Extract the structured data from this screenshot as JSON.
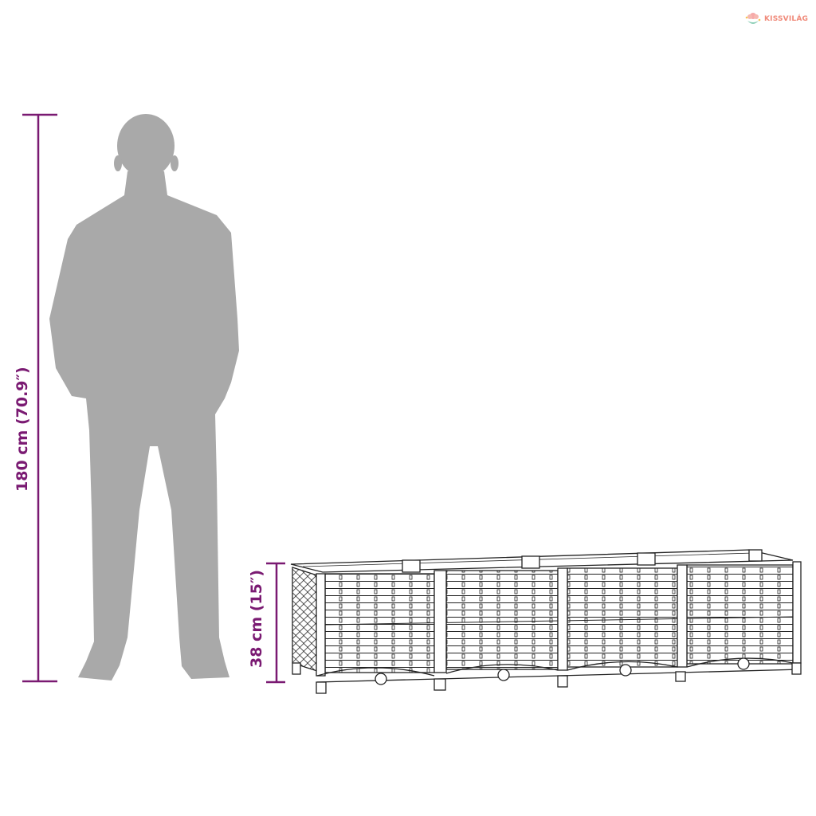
{
  "logo": {
    "text": "KISSVILÁG",
    "color": "#f08a7a"
  },
  "dimensions": {
    "person_height": "180 cm (70.9″)",
    "planter_height": "38 cm (15″)",
    "color": "#7a1a72"
  },
  "colors": {
    "silhouette": "#a9a9a9",
    "outline": "#222222"
  }
}
